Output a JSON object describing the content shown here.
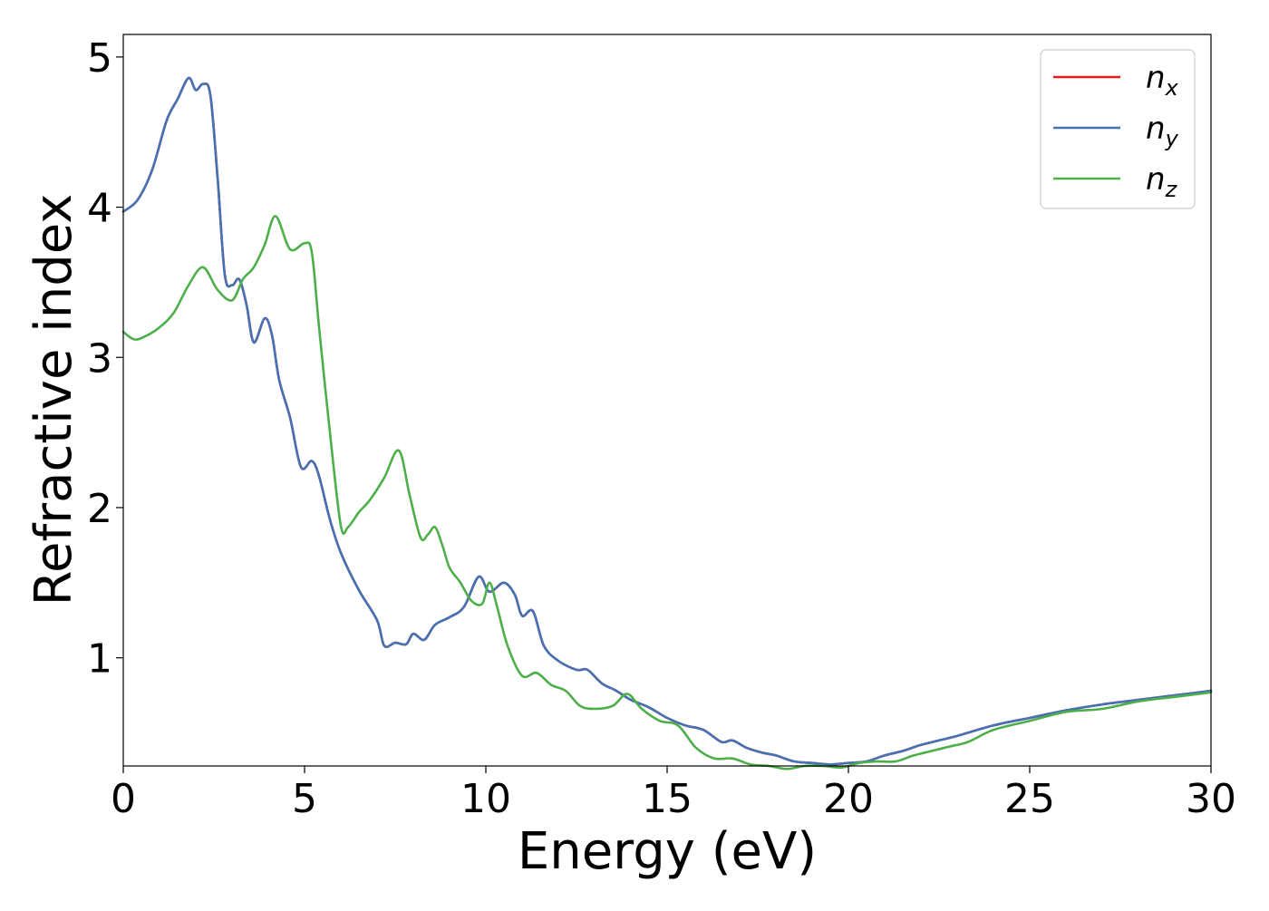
{
  "chart_data": {
    "type": "line",
    "title": "",
    "xlabel": "Energy (eV)",
    "ylabel": "Refractive index",
    "xlim": [
      0,
      30
    ],
    "ylim": [
      0.28,
      5.15
    ],
    "xticks": [
      0,
      5,
      10,
      15,
      20,
      25,
      30
    ],
    "xtick_labels": [
      "0",
      "5",
      "10",
      "15",
      "20",
      "25",
      "30"
    ],
    "yticks": [
      1,
      2,
      3,
      4,
      5
    ],
    "ytick_labels": [
      "1",
      "2",
      "3",
      "4",
      "5"
    ],
    "grid": false,
    "legend_position": "top-right",
    "series": [
      {
        "name": "n_x",
        "legend_main": "n",
        "legend_sub": "x",
        "color": "#e41a1c",
        "x": [
          0,
          0.4,
          0.8,
          1.2,
          1.5,
          1.8,
          2.0,
          2.2,
          2.4,
          2.6,
          2.8,
          3.0,
          3.2,
          3.4,
          3.6,
          3.9,
          4.1,
          4.3,
          4.6,
          4.9,
          5.2,
          5.4,
          5.7,
          6.0,
          6.5,
          7.0,
          7.2,
          7.5,
          7.8,
          8.0,
          8.3,
          8.6,
          9.0,
          9.4,
          9.8,
          10.1,
          10.5,
          10.8,
          11.0,
          11.3,
          11.6,
          12.0,
          12.5,
          12.8,
          13.2,
          13.6,
          14.0,
          14.5,
          15.0,
          15.5,
          16.0,
          16.5,
          16.8,
          17.2,
          17.6,
          18.0,
          18.5,
          19.0,
          19.5,
          20.0,
          20.5,
          21.0,
          21.5,
          22.0,
          22.5,
          23.0,
          24.0,
          25.0,
          26.0,
          27.0,
          28.0,
          29.0,
          30.0
        ],
        "y": [
          3.97,
          4.05,
          4.25,
          4.58,
          4.72,
          4.86,
          4.78,
          4.82,
          4.75,
          4.2,
          3.55,
          3.48,
          3.52,
          3.35,
          3.1,
          3.26,
          3.15,
          2.85,
          2.6,
          2.27,
          2.31,
          2.21,
          1.92,
          1.7,
          1.45,
          1.25,
          1.08,
          1.1,
          1.09,
          1.16,
          1.12,
          1.22,
          1.27,
          1.34,
          1.54,
          1.44,
          1.5,
          1.42,
          1.28,
          1.31,
          1.08,
          0.98,
          0.92,
          0.92,
          0.83,
          0.78,
          0.72,
          0.67,
          0.6,
          0.55,
          0.52,
          0.44,
          0.45,
          0.4,
          0.37,
          0.35,
          0.31,
          0.3,
          0.29,
          0.3,
          0.31,
          0.35,
          0.38,
          0.42,
          0.45,
          0.48,
          0.55,
          0.6,
          0.65,
          0.69,
          0.72,
          0.75,
          0.78
        ]
      },
      {
        "name": "n_y",
        "legend_main": "n",
        "legend_sub": "y",
        "color": "#4472b4",
        "x": [
          0,
          0.4,
          0.8,
          1.2,
          1.5,
          1.8,
          2.0,
          2.2,
          2.4,
          2.6,
          2.8,
          3.0,
          3.2,
          3.4,
          3.6,
          3.9,
          4.1,
          4.3,
          4.6,
          4.9,
          5.2,
          5.4,
          5.7,
          6.0,
          6.5,
          7.0,
          7.2,
          7.5,
          7.8,
          8.0,
          8.3,
          8.6,
          9.0,
          9.4,
          9.8,
          10.1,
          10.5,
          10.8,
          11.0,
          11.3,
          11.6,
          12.0,
          12.5,
          12.8,
          13.2,
          13.6,
          14.0,
          14.5,
          15.0,
          15.5,
          16.0,
          16.5,
          16.8,
          17.2,
          17.6,
          18.0,
          18.5,
          19.0,
          19.5,
          20.0,
          20.5,
          21.0,
          21.5,
          22.0,
          22.5,
          23.0,
          24.0,
          25.0,
          26.0,
          27.0,
          28.0,
          29.0,
          30.0
        ],
        "y": [
          3.97,
          4.05,
          4.25,
          4.58,
          4.72,
          4.86,
          4.78,
          4.82,
          4.75,
          4.2,
          3.55,
          3.48,
          3.52,
          3.35,
          3.1,
          3.26,
          3.15,
          2.85,
          2.6,
          2.27,
          2.31,
          2.21,
          1.92,
          1.7,
          1.45,
          1.25,
          1.08,
          1.1,
          1.09,
          1.16,
          1.12,
          1.22,
          1.27,
          1.34,
          1.54,
          1.44,
          1.5,
          1.42,
          1.28,
          1.31,
          1.08,
          0.98,
          0.92,
          0.92,
          0.83,
          0.78,
          0.72,
          0.67,
          0.6,
          0.55,
          0.52,
          0.44,
          0.45,
          0.4,
          0.37,
          0.35,
          0.31,
          0.3,
          0.29,
          0.3,
          0.31,
          0.35,
          0.38,
          0.42,
          0.45,
          0.48,
          0.55,
          0.6,
          0.65,
          0.69,
          0.72,
          0.75,
          0.78
        ]
      },
      {
        "name": "n_z",
        "legend_main": "n",
        "legend_sub": "z",
        "color": "#4daf4a",
        "x": [
          0,
          0.3,
          0.6,
          1.0,
          1.4,
          1.8,
          2.2,
          2.6,
          3.0,
          3.3,
          3.6,
          3.9,
          4.2,
          4.6,
          5.0,
          5.2,
          5.4,
          5.7,
          6.0,
          6.2,
          6.5,
          6.8,
          7.2,
          7.6,
          7.9,
          8.2,
          8.4,
          8.6,
          8.8,
          9.0,
          9.3,
          9.6,
          9.9,
          10.1,
          10.3,
          10.6,
          11.0,
          11.4,
          11.8,
          12.2,
          12.6,
          13.0,
          13.5,
          13.9,
          14.3,
          14.8,
          15.3,
          15.8,
          16.3,
          16.8,
          17.3,
          17.8,
          18.3,
          18.8,
          19.3,
          19.8,
          20.3,
          20.8,
          21.3,
          21.8,
          22.3,
          22.8,
          23.3,
          24.0,
          25.0,
          26.0,
          27.0,
          28.0,
          29.0,
          30.0
        ],
        "y": [
          3.17,
          3.12,
          3.14,
          3.2,
          3.3,
          3.48,
          3.6,
          3.45,
          3.38,
          3.52,
          3.6,
          3.75,
          3.94,
          3.72,
          3.76,
          3.7,
          3.2,
          2.5,
          1.88,
          1.87,
          1.97,
          2.05,
          2.2,
          2.38,
          2.08,
          1.8,
          1.82,
          1.87,
          1.75,
          1.6,
          1.5,
          1.38,
          1.36,
          1.5,
          1.35,
          1.08,
          0.88,
          0.9,
          0.82,
          0.78,
          0.68,
          0.66,
          0.68,
          0.76,
          0.66,
          0.58,
          0.55,
          0.4,
          0.33,
          0.33,
          0.29,
          0.28,
          0.26,
          0.28,
          0.28,
          0.27,
          0.3,
          0.31,
          0.31,
          0.35,
          0.38,
          0.41,
          0.44,
          0.52,
          0.58,
          0.64,
          0.66,
          0.71,
          0.74,
          0.77
        ]
      }
    ]
  }
}
